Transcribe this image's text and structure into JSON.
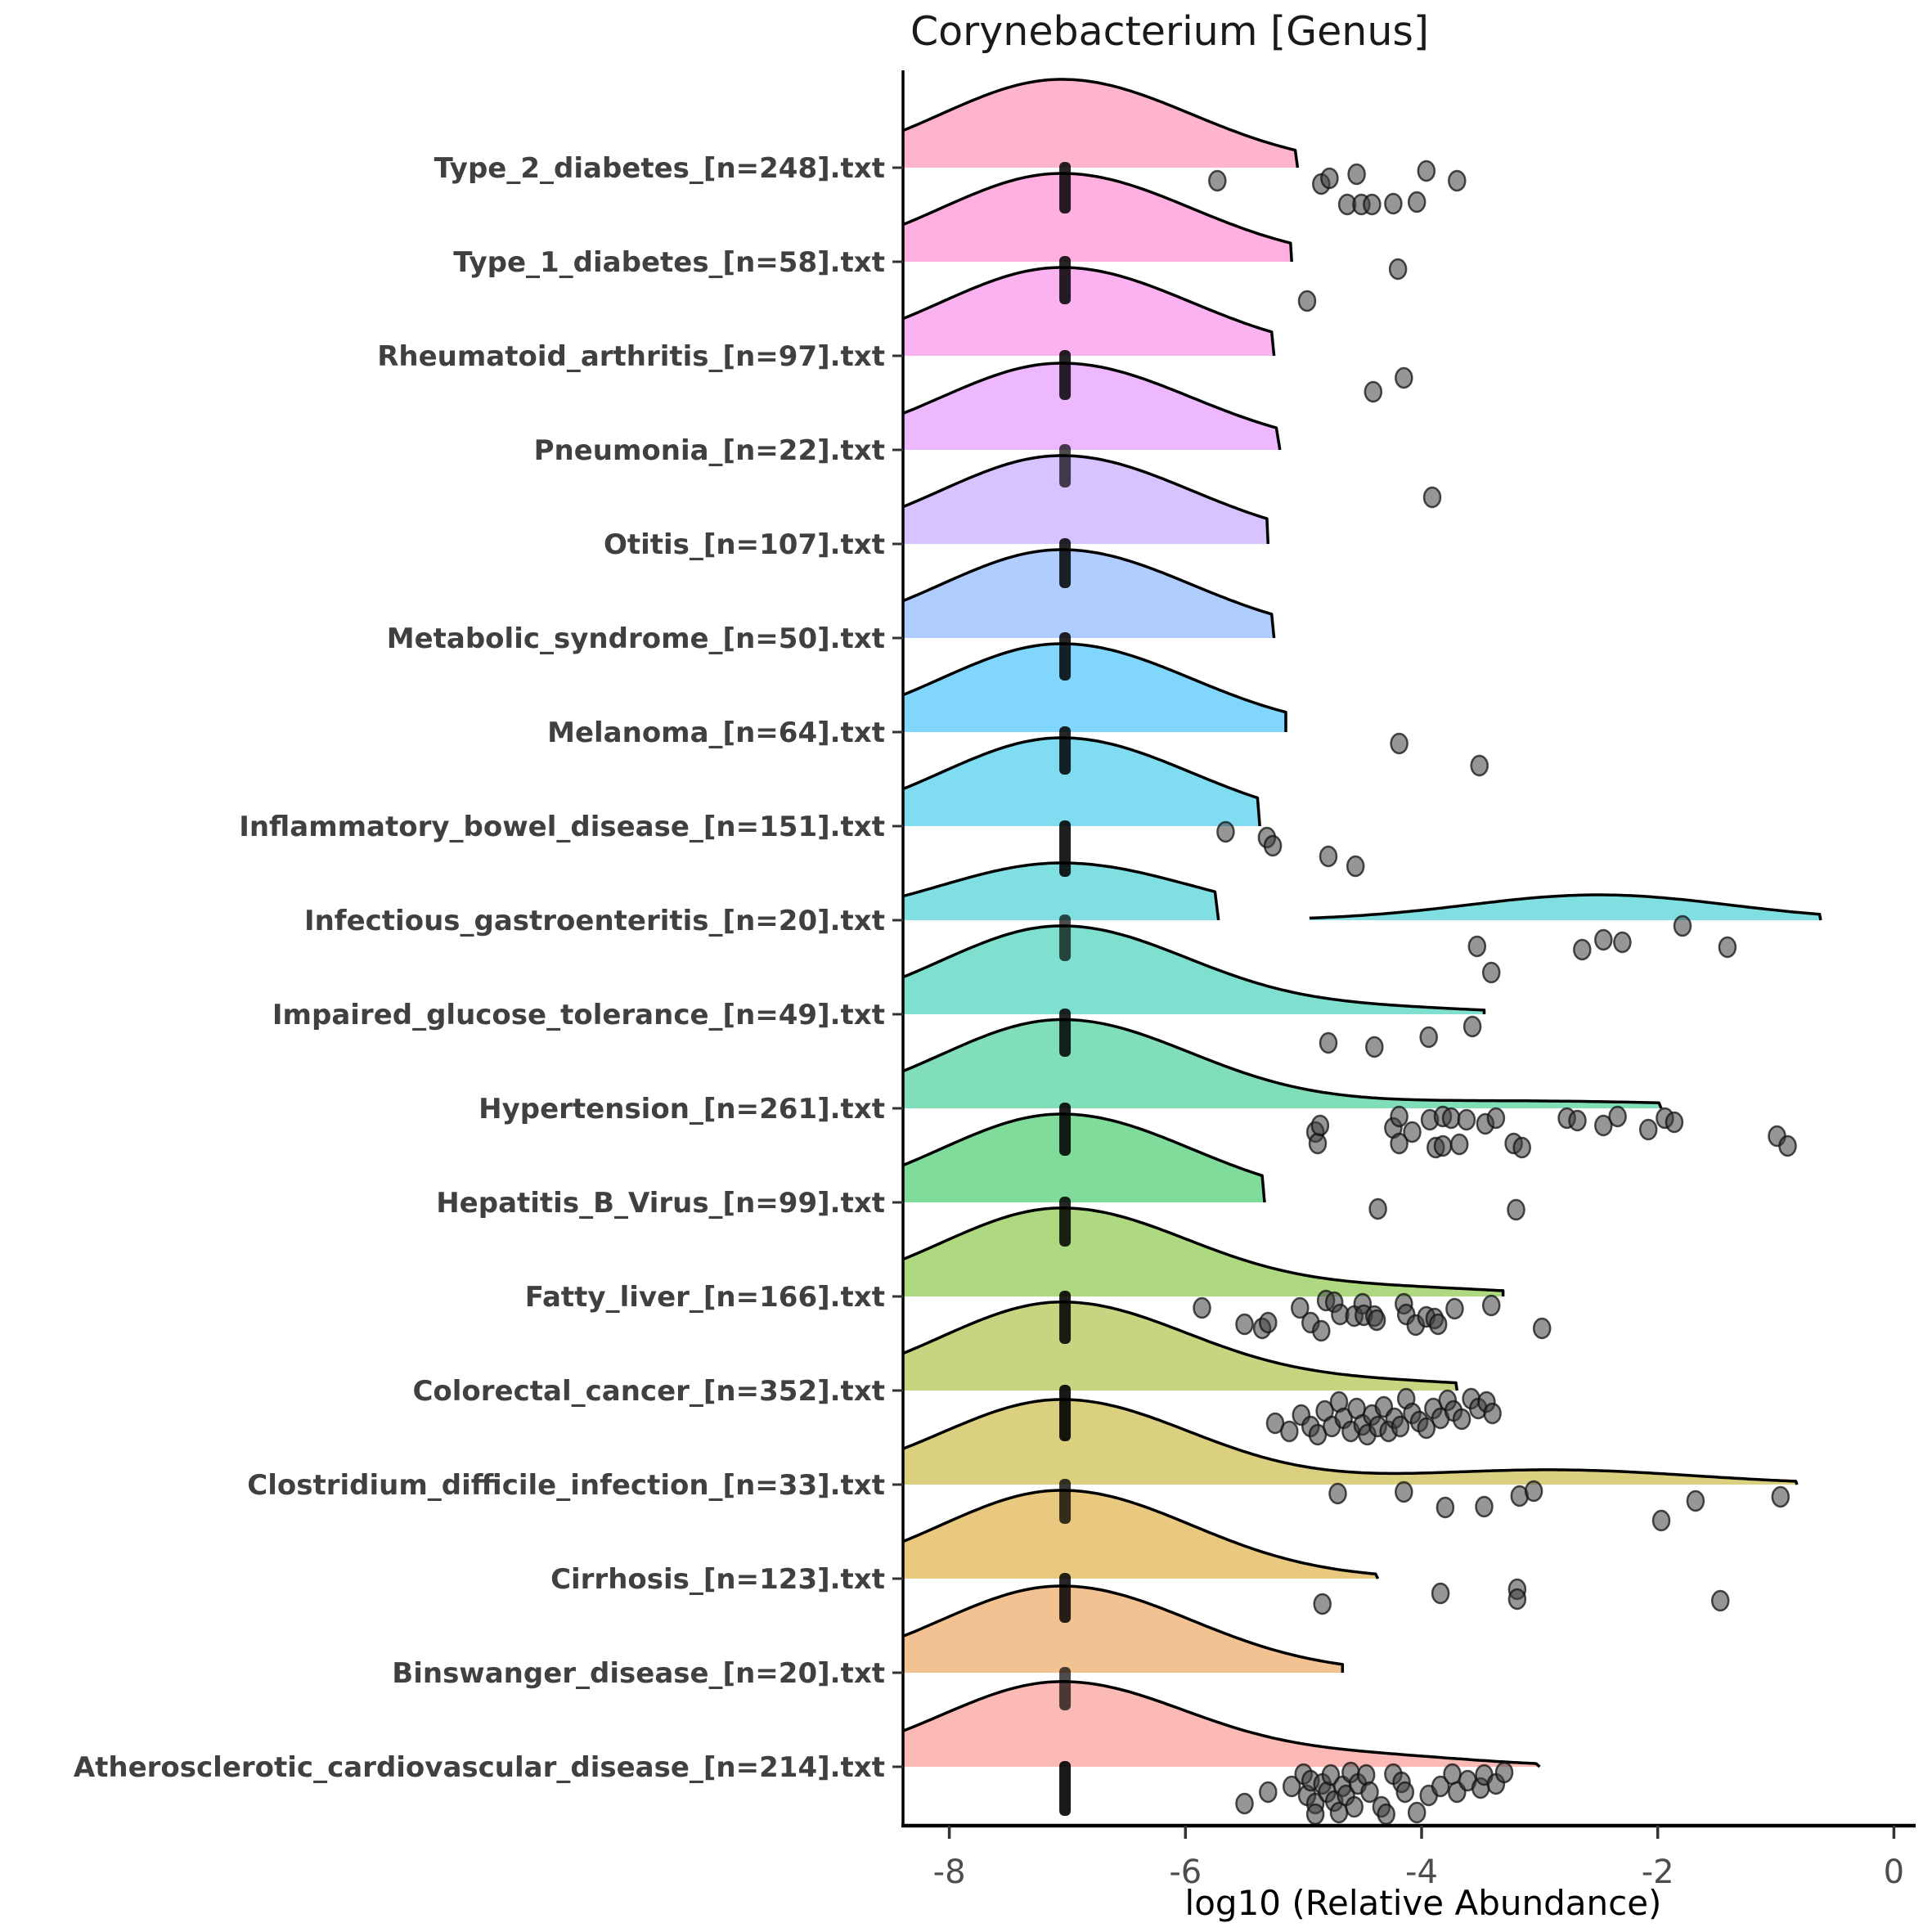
{
  "title": "Corynebacterium [Genus]",
  "chart_data": {
    "type": "ridgeline",
    "title": "Corynebacterium [Genus]",
    "xlabel": "log10 (Relative Abundance)",
    "x_ticks": [
      -8,
      -6,
      -4,
      -2,
      0
    ],
    "x_domain": [
      -8.39,
      0.33
    ],
    "grid": "off",
    "legend": "none",
    "floor_value": -7,
    "axis_color": "#000000",
    "tick_label_color": "#4d4d4d",
    "y_label_color": "#404040",
    "point_fill": "#3f3f3f",
    "point_stroke": "#111111",
    "ridge_stroke": "#000000",
    "rows": [
      {
        "label": "Type_2_diabetes_[n=248].txt",
        "n": 248,
        "fill": "#FFB4CE",
        "peak": {
          "c": -7.05,
          "h": 108,
          "sd_l": 1.02,
          "sd_r": 1.1
        },
        "end": -5.05,
        "bump": null,
        "island": null,
        "bar": {
          "v": -7.02,
          "depth": 56,
          "opacity": 0.85
        },
        "points": [
          [
            -5.73,
            16
          ],
          [
            -4.85,
            20
          ],
          [
            -4.78,
            13
          ],
          [
            -4.63,
            45
          ],
          [
            -4.55,
            8
          ],
          [
            -4.51,
            45
          ],
          [
            -4.42,
            45
          ],
          [
            -4.24,
            44
          ],
          [
            -4.04,
            42
          ],
          [
            -3.96,
            4
          ],
          [
            -3.7,
            16
          ]
        ]
      },
      {
        "label": "Type_1_diabetes_[n=58].txt",
        "n": 58,
        "fill": "#FFB0E1",
        "peak": {
          "c": -7.05,
          "h": 108,
          "sd_l": 1.02,
          "sd_r": 1.1
        },
        "end": -5.1,
        "bump": null,
        "island": null,
        "bar": {
          "v": -7.02,
          "depth": 52,
          "opacity": 0.85
        },
        "points": [
          [
            -4.97,
            48
          ],
          [
            -4.2,
            9
          ]
        ]
      },
      {
        "label": "Rheumatoid_arthritis_[n=97].txt",
        "n": 97,
        "fill": "#FAB2F1",
        "peak": {
          "c": -7.05,
          "h": 108,
          "sd_l": 1.02,
          "sd_r": 1.1
        },
        "end": -5.25,
        "bump": null,
        "island": null,
        "bar": {
          "v": -7.02,
          "depth": 54,
          "opacity": 0.85
        },
        "points": [
          [
            -4.41,
            44
          ],
          [
            -4.15,
            27
          ]
        ]
      },
      {
        "label": "Pneumonia_[n=22].txt",
        "n": 22,
        "fill": "#EDB8FD",
        "peak": {
          "c": -7.05,
          "h": 106,
          "sd_l": 1.02,
          "sd_r": 1.1
        },
        "end": -5.2,
        "bump": null,
        "island": null,
        "bar": {
          "v": -7.02,
          "depth": 46,
          "opacity": 0.7
        },
        "points": [
          [
            -3.91,
            58
          ]
        ]
      },
      {
        "label": "Otitis_[n=107].txt",
        "n": 107,
        "fill": "#D6C3FF",
        "peak": {
          "c": -7.05,
          "h": 108,
          "sd_l": 1.02,
          "sd_r": 1.1
        },
        "end": -5.3,
        "bump": null,
        "island": null,
        "bar": {
          "v": -7.02,
          "depth": 54,
          "opacity": 0.85
        },
        "points": []
      },
      {
        "label": "Metabolic_syndrome_[n=50].txt",
        "n": 50,
        "fill": "#B0CDFF",
        "peak": {
          "c": -7.05,
          "h": 108,
          "sd_l": 1.02,
          "sd_r": 1.1
        },
        "end": -5.25,
        "bump": null,
        "island": null,
        "bar": {
          "v": -7.02,
          "depth": 52,
          "opacity": 0.85
        },
        "points": []
      },
      {
        "label": "Melanoma_[n=64].txt",
        "n": 64,
        "fill": "#80D6FC",
        "peak": {
          "c": -7.05,
          "h": 108,
          "sd_l": 1.02,
          "sd_r": 1.1
        },
        "end": -5.15,
        "bump": null,
        "island": null,
        "bar": {
          "v": -7.02,
          "depth": 52,
          "opacity": 0.85
        },
        "points": [
          [
            -4.19,
            14
          ],
          [
            -3.51,
            41
          ]
        ]
      },
      {
        "label": "Inflammatory_bowel_disease_[n=151].txt",
        "n": 151,
        "fill": "#80DCF1",
        "peak": {
          "c": -7.05,
          "h": 108,
          "sd_l": 1.02,
          "sd_r": 1.1
        },
        "end": -5.37,
        "bump": null,
        "island": null,
        "bar": {
          "v": -7.02,
          "depth": 62,
          "opacity": 0.88
        },
        "points": [
          [
            -5.66,
            7
          ],
          [
            -5.31,
            14
          ],
          [
            -5.26,
            24
          ],
          [
            -4.79,
            37
          ],
          [
            -4.56,
            49
          ]
        ]
      },
      {
        "label": "Infectious_gastroenteritis_[n=20].txt",
        "n": 20,
        "fill": "#80DFE1",
        "peak": {
          "c": -7.05,
          "h": 70,
          "sd_l": 1.02,
          "sd_r": 1.1
        },
        "end": -5.72,
        "bump": null,
        "island": {
          "start": -4.95,
          "c": -2.5,
          "sd": 1.1,
          "h": 31,
          "end": -0.62
        },
        "bar": {
          "v": -7.02,
          "depth": 50,
          "opacity": 0.7
        },
        "points": [
          [
            -3.53,
            32
          ],
          [
            -3.41,
            64
          ],
          [
            -2.64,
            36
          ],
          [
            -2.46,
            24
          ],
          [
            -2.3,
            27
          ],
          [
            -1.79,
            7
          ],
          [
            -1.41,
            33
          ]
        ]
      },
      {
        "label": "Impaired_glucose_tolerance_[n=49].txt",
        "n": 49,
        "fill": "#80E0CF",
        "peak": {
          "c": -7.05,
          "h": 108,
          "sd_l": 1.02,
          "sd_r": 1.1
        },
        "end": -3.47,
        "bump": {
          "c": -4.3,
          "sd": 0.9,
          "h": 7
        },
        "island": null,
        "bar": {
          "v": -7.02,
          "depth": 52,
          "opacity": 0.85
        },
        "points": [
          [
            -4.79,
            35
          ],
          [
            -4.4,
            40
          ],
          [
            -3.94,
            28
          ],
          [
            -3.57,
            15
          ]
        ]
      },
      {
        "label": "Hypertension_[n=261].txt",
        "n": 261,
        "fill": "#80DFB9",
        "peak": {
          "c": -7.05,
          "h": 108,
          "sd_l": 1.02,
          "sd_r": 1.1
        },
        "end": -1.97,
        "bump": {
          "c": -3.2,
          "sd": 1.6,
          "h": 9
        },
        "island": null,
        "bar": {
          "v": -7.02,
          "depth": 58,
          "opacity": 0.88
        },
        "points": [
          [
            -4.9,
            29
          ],
          [
            -4.88,
            43
          ],
          [
            -4.86,
            21
          ],
          [
            -4.24,
            24
          ],
          [
            -4.19,
            10
          ],
          [
            -4.19,
            43
          ],
          [
            -4.08,
            29
          ],
          [
            -3.93,
            14
          ],
          [
            -3.88,
            48
          ],
          [
            -3.82,
            10
          ],
          [
            -3.82,
            46
          ],
          [
            -3.75,
            12
          ],
          [
            -3.68,
            44
          ],
          [
            -3.62,
            14
          ],
          [
            -3.46,
            19
          ],
          [
            -3.37,
            12
          ],
          [
            -3.22,
            43
          ],
          [
            -3.15,
            48
          ],
          [
            -2.77,
            12
          ],
          [
            -2.68,
            15
          ],
          [
            -2.46,
            21
          ],
          [
            -2.34,
            10
          ],
          [
            -2.08,
            26
          ],
          [
            -1.94,
            12
          ],
          [
            -1.86,
            17
          ],
          [
            -0.99,
            34
          ],
          [
            -0.9,
            46
          ]
        ]
      },
      {
        "label": "Hepatitis_B_Virus_[n=99].txt",
        "n": 99,
        "fill": "#80DC9B",
        "peak": {
          "c": -7.05,
          "h": 108,
          "sd_l": 1.02,
          "sd_r": 1.1
        },
        "end": -5.33,
        "bump": null,
        "island": null,
        "bar": {
          "v": -7.02,
          "depth": 54,
          "opacity": 0.85
        },
        "points": [
          [
            -4.37,
            8
          ],
          [
            -3.2,
            9
          ]
        ]
      },
      {
        "label": "Fatty_liver_[n=166].txt",
        "n": 166,
        "fill": "#AED980",
        "peak": {
          "c": -7.05,
          "h": 108,
          "sd_l": 1.02,
          "sd_r": 1.1
        },
        "end": -3.31,
        "bump": {
          "c": -4.2,
          "sd": 1.0,
          "h": 10
        },
        "island": null,
        "bar": {
          "v": -7.02,
          "depth": 58,
          "opacity": 0.88
        },
        "points": [
          [
            -5.86,
            14
          ],
          [
            -5.5,
            34
          ],
          [
            -5.35,
            39
          ],
          [
            -5.3,
            32
          ],
          [
            -5.03,
            14
          ],
          [
            -4.94,
            32
          ],
          [
            -4.85,
            42
          ],
          [
            -4.81,
            5
          ],
          [
            -4.74,
            7
          ],
          [
            -4.69,
            22
          ],
          [
            -4.57,
            24
          ],
          [
            -4.5,
            9
          ],
          [
            -4.49,
            23
          ],
          [
            -4.4,
            24
          ],
          [
            -4.38,
            29
          ],
          [
            -4.15,
            9
          ],
          [
            -4.13,
            22
          ],
          [
            -4.05,
            35
          ],
          [
            -3.96,
            25
          ],
          [
            -3.89,
            27
          ],
          [
            -3.86,
            34
          ],
          [
            -3.72,
            15
          ],
          [
            -3.41,
            11
          ],
          [
            -2.98,
            39
          ]
        ]
      },
      {
        "label": "Colorectal_cancer_[n=352].txt",
        "n": 352,
        "fill": "#C9D480",
        "peak": {
          "c": -7.05,
          "h": 108,
          "sd_l": 1.02,
          "sd_r": 1.1
        },
        "end": -3.7,
        "bump": {
          "c": -4.3,
          "sd": 1.0,
          "h": 10
        },
        "island": null,
        "bar": {
          "v": -7.02,
          "depth": 62,
          "opacity": 0.9
        },
        "points": [
          [
            -5.24,
            40
          ],
          [
            -5.12,
            50
          ],
          [
            -5.02,
            30
          ],
          [
            -4.94,
            44
          ],
          [
            -4.88,
            54
          ],
          [
            -4.82,
            25
          ],
          [
            -4.76,
            44
          ],
          [
            -4.7,
            14
          ],
          [
            -4.66,
            34
          ],
          [
            -4.6,
            50
          ],
          [
            -4.55,
            22
          ],
          [
            -4.5,
            42
          ],
          [
            -4.46,
            54
          ],
          [
            -4.42,
            30
          ],
          [
            -4.37,
            44
          ],
          [
            -4.32,
            20
          ],
          [
            -4.28,
            50
          ],
          [
            -4.23,
            34
          ],
          [
            -4.18,
            44
          ],
          [
            -4.13,
            10
          ],
          [
            -4.08,
            28
          ],
          [
            -4.02,
            38
          ],
          [
            -3.96,
            46
          ],
          [
            -3.9,
            22
          ],
          [
            -3.84,
            34
          ],
          [
            -3.78,
            12
          ],
          [
            -3.73,
            25
          ],
          [
            -3.66,
            35
          ],
          [
            -3.58,
            10
          ],
          [
            -3.52,
            22
          ],
          [
            -3.45,
            14
          ],
          [
            -3.4,
            28
          ]
        ]
      },
      {
        "label": "Clostridium_difficile_infection_[n=33].txt",
        "n": 33,
        "fill": "#DBCF80",
        "peak": {
          "c": -7.05,
          "h": 104,
          "sd_l": 1.02,
          "sd_r": 1.1
        },
        "end": -0.82,
        "bump": {
          "c": -2.9,
          "sd": 1.2,
          "h": 18
        },
        "island": null,
        "bar": {
          "v": -7.02,
          "depth": 48,
          "opacity": 0.78
        },
        "points": [
          [
            -4.71,
            11
          ],
          [
            -4.15,
            9
          ],
          [
            -3.8,
            28
          ],
          [
            -3.47,
            27
          ],
          [
            -3.17,
            14
          ],
          [
            -3.05,
            8
          ],
          [
            -1.97,
            44
          ],
          [
            -1.68,
            20
          ],
          [
            -0.96,
            15
          ]
        ]
      },
      {
        "label": "Cirrhosis_[n=123].txt",
        "n": 123,
        "fill": "#E9C880",
        "peak": {
          "c": -7.05,
          "h": 108,
          "sd_l": 1.02,
          "sd_r": 1.1
        },
        "end": -4.37,
        "bump": null,
        "island": null,
        "bar": {
          "v": -7.02,
          "depth": 54,
          "opacity": 0.85
        },
        "points": [
          [
            -4.84,
            31
          ],
          [
            -3.84,
            18
          ],
          [
            -3.19,
            13
          ],
          [
            -3.19,
            25
          ],
          [
            -1.47,
            27
          ]
        ]
      },
      {
        "label": "Binswanger_disease_[n=20].txt",
        "n": 20,
        "fill": "#F3C292",
        "peak": {
          "c": -7.05,
          "h": 106,
          "sd_l": 1.02,
          "sd_r": 1.1
        },
        "end": -4.67,
        "bump": null,
        "island": null,
        "bar": {
          "v": -7.02,
          "depth": 46,
          "opacity": 0.7
        },
        "points": []
      },
      {
        "label": "Atherosclerotic_cardiovascular_disease_[n=214].txt",
        "n": 214,
        "fill": "#FBBAB6",
        "peak": {
          "c": -7.05,
          "h": 104,
          "sd_l": 1.02,
          "sd_r": 1.1
        },
        "end": -3.0,
        "bump": {
          "c": -4.4,
          "sd": 0.9,
          "h": 12
        },
        "island": null,
        "bar": {
          "v": -7.02,
          "depth": 60,
          "opacity": 0.9
        },
        "points": [
          [
            -5.5,
            45
          ],
          [
            -5.3,
            31
          ],
          [
            -5.1,
            24
          ],
          [
            -5.0,
            9
          ],
          [
            -4.97,
            35
          ],
          [
            -4.94,
            17
          ],
          [
            -4.9,
            45
          ],
          [
            -4.9,
            58
          ],
          [
            -4.84,
            21
          ],
          [
            -4.8,
            31
          ],
          [
            -4.77,
            10
          ],
          [
            -4.74,
            42
          ],
          [
            -4.7,
            56
          ],
          [
            -4.67,
            24
          ],
          [
            -4.64,
            35
          ],
          [
            -4.6,
            7
          ],
          [
            -4.57,
            49
          ],
          [
            -4.54,
            21
          ],
          [
            -4.47,
            10
          ],
          [
            -4.44,
            31
          ],
          [
            -4.34,
            49
          ],
          [
            -4.3,
            58
          ],
          [
            -4.24,
            9
          ],
          [
            -4.17,
            19
          ],
          [
            -4.14,
            31
          ],
          [
            -4.04,
            56
          ],
          [
            -3.94,
            35
          ],
          [
            -3.84,
            24
          ],
          [
            -3.74,
            9
          ],
          [
            -3.7,
            31
          ],
          [
            -3.61,
            17
          ],
          [
            -3.5,
            26
          ],
          [
            -3.47,
            10
          ],
          [
            -3.37,
            21
          ],
          [
            -3.3,
            7
          ]
        ]
      }
    ]
  }
}
